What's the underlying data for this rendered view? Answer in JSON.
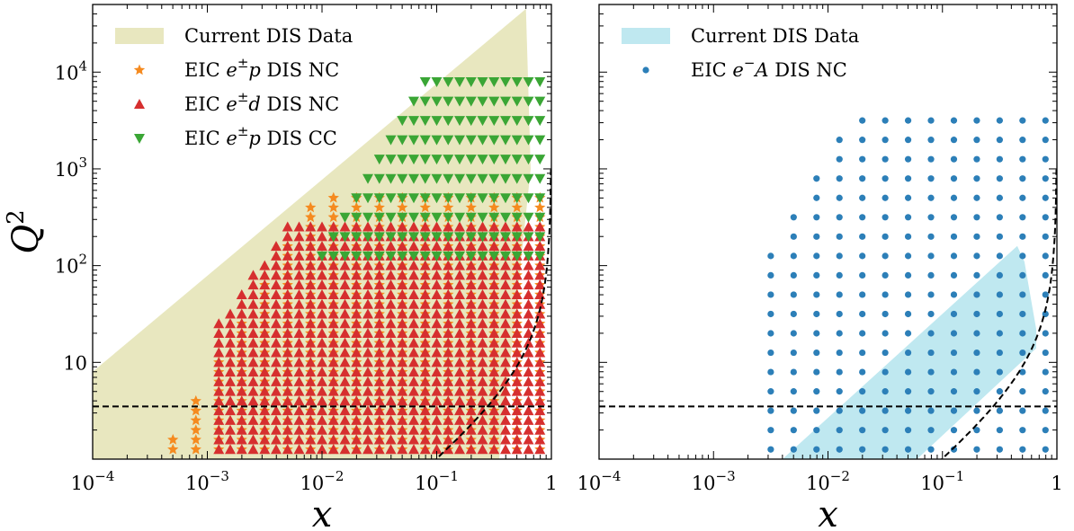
{
  "colors": {
    "current_left": "#e8e7bf",
    "current_right": "#bfe8f0",
    "orange": "#f58a1f",
    "red": "#d62f2f",
    "green": "#3aa635",
    "blue": "#2c7fb8"
  },
  "chart_data": [
    {
      "type": "scatter",
      "xlabel": "x",
      "ylabel": "Q^2",
      "xscale": "log",
      "yscale": "log",
      "xlim": [
        0.0001,
        1
      ],
      "ylim": [
        1.0,
        50000
      ],
      "xticks": [
        0.0001,
        0.001,
        0.01,
        0.1,
        1
      ],
      "xtick_labels": [
        {
          "base": "10",
          "exp": "−4"
        },
        {
          "base": "10",
          "exp": "−3"
        },
        {
          "base": "10",
          "exp": "−2"
        },
        {
          "base": "10",
          "exp": "−1"
        },
        {
          "base": "1",
          "exp": ""
        }
      ],
      "yticks": [
        10,
        100,
        1000,
        10000
      ],
      "ytick_labels": [
        {
          "base": "10",
          "exp": ""
        },
        {
          "base": "10",
          "exp": "2"
        },
        {
          "base": "10",
          "exp": "3"
        },
        {
          "base": "10",
          "exp": "4"
        }
      ],
      "legend_position": "top-left",
      "legend": [
        {
          "label_pre": "Current DIS Data",
          "sup": "",
          "label_post": "",
          "marker": "patch",
          "color_key": "current_left"
        },
        {
          "label_pre": "EIC e",
          "sup": "±",
          "label_post": "p DIS NC",
          "marker": "star",
          "color_key": "orange"
        },
        {
          "label_pre": "EIC e",
          "sup": "±",
          "label_post": "d DIS NC",
          "marker": "triangle-up",
          "color_key": "red"
        },
        {
          "label_pre": "EIC e",
          "sup": "±",
          "label_post": "p DIS CC",
          "marker": "triangle-down",
          "color_key": "green"
        }
      ],
      "current_region": [
        [
          0.0001,
          1.0
        ],
        [
          0.0001,
          8
        ],
        [
          0.6,
          45000
        ],
        [
          0.66,
          1000
        ],
        [
          0.43,
          8
        ],
        [
          0.35,
          1.0
        ]
      ],
      "cut_lines": {
        "q2_min": 3.5,
        "w2_min": 10,
        "proton_mass_sq": 0.88
      },
      "grids": {
        "orange_star": {
          "x_exp_step": 0.2,
          "x_exp_min": -3.9,
          "x_exp_max": -0.1,
          "y_exp_step": 0.1,
          "y_exp_min": 0.1,
          "y_exp_max_rule": "2*log10(x) + 6.8",
          "y_cap_exp": 2.7
        },
        "red_triangle": {
          "x_exp_step": 0.1,
          "x_exp_min": -2.9,
          "x_exp_max": -0.1,
          "y_exp_step": 0.1,
          "y_exp_min": 0.1,
          "y_exp_max_rule": "3.8*log10(x)/2.3 + 6.2",
          "y_cap_exp": 2.45
        },
        "green_triangle": {
          "x_exp_step": 0.1,
          "x_exp_min": -2.3,
          "x_exp_max": -0.1,
          "y_exp_step": 0.2,
          "y_exp_min": 2.1,
          "y_exp_max_rule": "2*log10(x) + 6.2",
          "y_cap_exp": 4.0
        }
      }
    },
    {
      "type": "scatter",
      "xlabel": "x",
      "ylabel": "",
      "xscale": "log",
      "yscale": "log",
      "xlim": [
        0.0001,
        1
      ],
      "ylim": [
        1.0,
        50000
      ],
      "xticks": [
        0.0001,
        0.001,
        0.01,
        0.1,
        1
      ],
      "xtick_labels": [
        {
          "base": "10",
          "exp": "−4"
        },
        {
          "base": "10",
          "exp": "−3"
        },
        {
          "base": "10",
          "exp": "−2"
        },
        {
          "base": "10",
          "exp": "−1"
        },
        {
          "base": "1",
          "exp": ""
        }
      ],
      "legend_position": "top-left",
      "legend": [
        {
          "label_pre": "Current DIS Data",
          "sup": "",
          "label_post": "",
          "marker": "patch",
          "color_key": "current_right"
        },
        {
          "label_pre": "EIC e",
          "sup": "−",
          "label_post": "A DIS NC",
          "marker": "circle",
          "color_key": "blue"
        }
      ],
      "current_region": [
        [
          0.004,
          1.0
        ],
        [
          0.45,
          160
        ],
        [
          0.52,
          110
        ],
        [
          0.66,
          22
        ],
        [
          0.66,
          14
        ],
        [
          0.06,
          1.0
        ]
      ],
      "cut_lines": {
        "q2_min": 3.5,
        "w2_min": 10,
        "proton_mass_sq": 0.88
      },
      "grids": {
        "blue_circle": {
          "x_exp_step": 0.2,
          "x_exp_min": -2.5,
          "x_exp_max": -0.1,
          "y_exp_step": 0.2,
          "y_exp_min": 0.1,
          "y_exp_max_rule": "2*log10(x) + 7.2",
          "y_cap_exp": 3.5
        }
      }
    }
  ]
}
